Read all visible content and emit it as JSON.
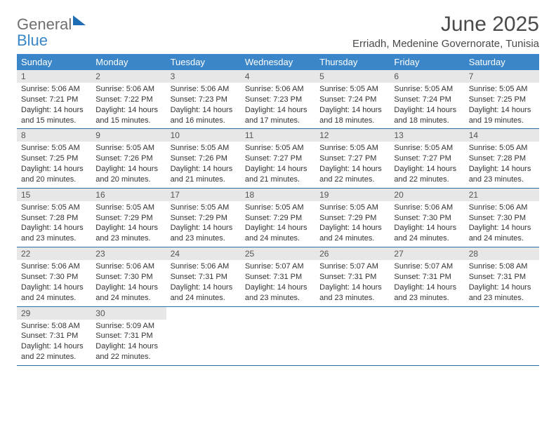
{
  "header": {
    "logo_general": "General",
    "logo_blue": "Blue",
    "month_title": "June 2025",
    "location": "Erriadh, Medenine Governorate, Tunisia"
  },
  "styles": {
    "header_bg": "#3a86c8",
    "daynum_bg": "#e7e7e7",
    "week_border": "#2e6da4",
    "page_bg": "#ffffff",
    "text_color": "#333333",
    "title_color": "#4a4a4a",
    "logo_gray": "#6f6f6f",
    "logo_blue": "#3a86c8"
  },
  "dow": [
    "Sunday",
    "Monday",
    "Tuesday",
    "Wednesday",
    "Thursday",
    "Friday",
    "Saturday"
  ],
  "weeks": [
    [
      {
        "n": "1",
        "sr": "Sunrise: 5:06 AM",
        "ss": "Sunset: 7:21 PM",
        "d1": "Daylight: 14 hours",
        "d2": "and 15 minutes."
      },
      {
        "n": "2",
        "sr": "Sunrise: 5:06 AM",
        "ss": "Sunset: 7:22 PM",
        "d1": "Daylight: 14 hours",
        "d2": "and 15 minutes."
      },
      {
        "n": "3",
        "sr": "Sunrise: 5:06 AM",
        "ss": "Sunset: 7:23 PM",
        "d1": "Daylight: 14 hours",
        "d2": "and 16 minutes."
      },
      {
        "n": "4",
        "sr": "Sunrise: 5:06 AM",
        "ss": "Sunset: 7:23 PM",
        "d1": "Daylight: 14 hours",
        "d2": "and 17 minutes."
      },
      {
        "n": "5",
        "sr": "Sunrise: 5:05 AM",
        "ss": "Sunset: 7:24 PM",
        "d1": "Daylight: 14 hours",
        "d2": "and 18 minutes."
      },
      {
        "n": "6",
        "sr": "Sunrise: 5:05 AM",
        "ss": "Sunset: 7:24 PM",
        "d1": "Daylight: 14 hours",
        "d2": "and 18 minutes."
      },
      {
        "n": "7",
        "sr": "Sunrise: 5:05 AM",
        "ss": "Sunset: 7:25 PM",
        "d1": "Daylight: 14 hours",
        "d2": "and 19 minutes."
      }
    ],
    [
      {
        "n": "8",
        "sr": "Sunrise: 5:05 AM",
        "ss": "Sunset: 7:25 PM",
        "d1": "Daylight: 14 hours",
        "d2": "and 20 minutes."
      },
      {
        "n": "9",
        "sr": "Sunrise: 5:05 AM",
        "ss": "Sunset: 7:26 PM",
        "d1": "Daylight: 14 hours",
        "d2": "and 20 minutes."
      },
      {
        "n": "10",
        "sr": "Sunrise: 5:05 AM",
        "ss": "Sunset: 7:26 PM",
        "d1": "Daylight: 14 hours",
        "d2": "and 21 minutes."
      },
      {
        "n": "11",
        "sr": "Sunrise: 5:05 AM",
        "ss": "Sunset: 7:27 PM",
        "d1": "Daylight: 14 hours",
        "d2": "and 21 minutes."
      },
      {
        "n": "12",
        "sr": "Sunrise: 5:05 AM",
        "ss": "Sunset: 7:27 PM",
        "d1": "Daylight: 14 hours",
        "d2": "and 22 minutes."
      },
      {
        "n": "13",
        "sr": "Sunrise: 5:05 AM",
        "ss": "Sunset: 7:27 PM",
        "d1": "Daylight: 14 hours",
        "d2": "and 22 minutes."
      },
      {
        "n": "14",
        "sr": "Sunrise: 5:05 AM",
        "ss": "Sunset: 7:28 PM",
        "d1": "Daylight: 14 hours",
        "d2": "and 23 minutes."
      }
    ],
    [
      {
        "n": "15",
        "sr": "Sunrise: 5:05 AM",
        "ss": "Sunset: 7:28 PM",
        "d1": "Daylight: 14 hours",
        "d2": "and 23 minutes."
      },
      {
        "n": "16",
        "sr": "Sunrise: 5:05 AM",
        "ss": "Sunset: 7:29 PM",
        "d1": "Daylight: 14 hours",
        "d2": "and 23 minutes."
      },
      {
        "n": "17",
        "sr": "Sunrise: 5:05 AM",
        "ss": "Sunset: 7:29 PM",
        "d1": "Daylight: 14 hours",
        "d2": "and 23 minutes."
      },
      {
        "n": "18",
        "sr": "Sunrise: 5:05 AM",
        "ss": "Sunset: 7:29 PM",
        "d1": "Daylight: 14 hours",
        "d2": "and 24 minutes."
      },
      {
        "n": "19",
        "sr": "Sunrise: 5:05 AM",
        "ss": "Sunset: 7:29 PM",
        "d1": "Daylight: 14 hours",
        "d2": "and 24 minutes."
      },
      {
        "n": "20",
        "sr": "Sunrise: 5:06 AM",
        "ss": "Sunset: 7:30 PM",
        "d1": "Daylight: 14 hours",
        "d2": "and 24 minutes."
      },
      {
        "n": "21",
        "sr": "Sunrise: 5:06 AM",
        "ss": "Sunset: 7:30 PM",
        "d1": "Daylight: 14 hours",
        "d2": "and 24 minutes."
      }
    ],
    [
      {
        "n": "22",
        "sr": "Sunrise: 5:06 AM",
        "ss": "Sunset: 7:30 PM",
        "d1": "Daylight: 14 hours",
        "d2": "and 24 minutes."
      },
      {
        "n": "23",
        "sr": "Sunrise: 5:06 AM",
        "ss": "Sunset: 7:30 PM",
        "d1": "Daylight: 14 hours",
        "d2": "and 24 minutes."
      },
      {
        "n": "24",
        "sr": "Sunrise: 5:06 AM",
        "ss": "Sunset: 7:31 PM",
        "d1": "Daylight: 14 hours",
        "d2": "and 24 minutes."
      },
      {
        "n": "25",
        "sr": "Sunrise: 5:07 AM",
        "ss": "Sunset: 7:31 PM",
        "d1": "Daylight: 14 hours",
        "d2": "and 23 minutes."
      },
      {
        "n": "26",
        "sr": "Sunrise: 5:07 AM",
        "ss": "Sunset: 7:31 PM",
        "d1": "Daylight: 14 hours",
        "d2": "and 23 minutes."
      },
      {
        "n": "27",
        "sr": "Sunrise: 5:07 AM",
        "ss": "Sunset: 7:31 PM",
        "d1": "Daylight: 14 hours",
        "d2": "and 23 minutes."
      },
      {
        "n": "28",
        "sr": "Sunrise: 5:08 AM",
        "ss": "Sunset: 7:31 PM",
        "d1": "Daylight: 14 hours",
        "d2": "and 23 minutes."
      }
    ],
    [
      {
        "n": "29",
        "sr": "Sunrise: 5:08 AM",
        "ss": "Sunset: 7:31 PM",
        "d1": "Daylight: 14 hours",
        "d2": "and 22 minutes."
      },
      {
        "n": "30",
        "sr": "Sunrise: 5:09 AM",
        "ss": "Sunset: 7:31 PM",
        "d1": "Daylight: 14 hours",
        "d2": "and 22 minutes."
      },
      {
        "empty": true
      },
      {
        "empty": true
      },
      {
        "empty": true
      },
      {
        "empty": true
      },
      {
        "empty": true
      }
    ]
  ]
}
